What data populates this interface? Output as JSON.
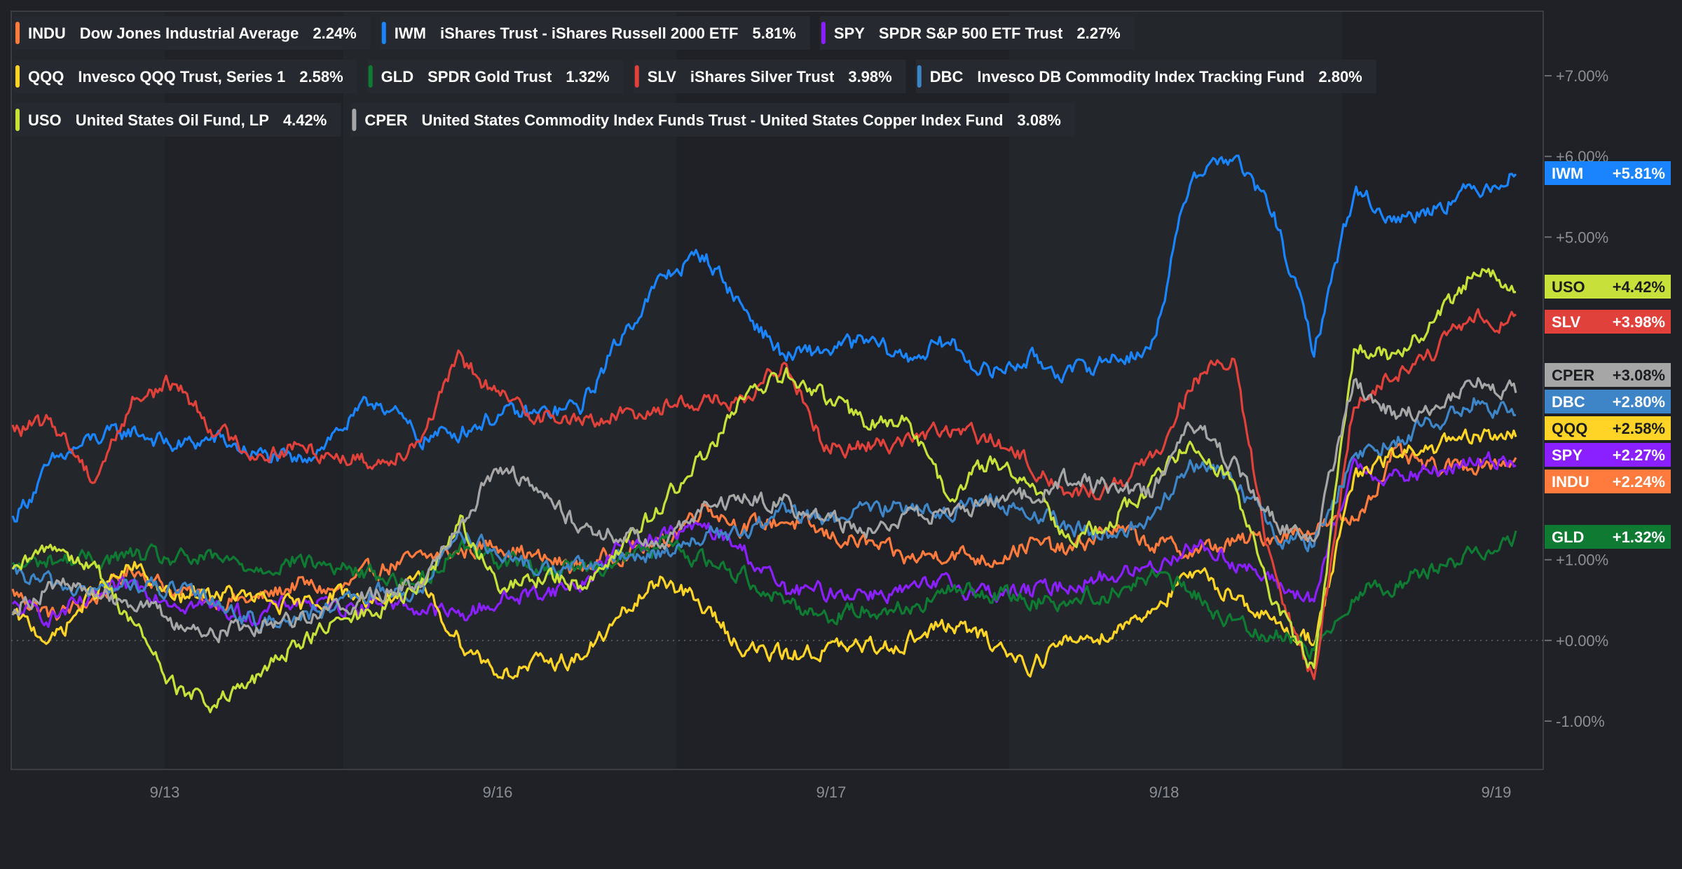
{
  "chart_data": {
    "type": "line",
    "title": "",
    "xlabel": "",
    "ylabel": "",
    "ylim": [
      -1.6,
      7.8
    ],
    "y_ticks": [
      "-1.00%",
      "+0.00%",
      "+1.00%",
      "+5.00%",
      "+6.00%",
      "+7.00%"
    ],
    "y_tick_values": [
      -1,
      0,
      1,
      5,
      6,
      7
    ],
    "x_ticks": [
      "9/13",
      "9/16",
      "9/17",
      "9/18",
      "9/19"
    ],
    "grid": false,
    "zero_line": true,
    "legend_placement": "top-left",
    "series": [
      {
        "symbol": "INDU",
        "name": "Dow Jones Industrial Average",
        "legend_value": "2.24%",
        "badge": "+2.24%",
        "color": "#ff7a3d",
        "values": [
          0.6,
          0.3,
          0.5,
          0.9,
          0.6,
          0.5,
          0.5,
          0.7,
          0.6,
          0.9,
          1.0,
          1.1,
          1.2,
          1.0,
          0.9,
          1.1,
          1.2,
          1.7,
          1.4,
          1.5,
          1.3,
          1.2,
          1.0,
          1.1,
          1.0,
          1.2,
          1.1,
          1.4,
          1.2,
          1.1,
          1.2,
          1.3,
          1.4,
          1.5,
          2.3,
          2.1,
          2.2,
          2.24
        ]
      },
      {
        "symbol": "IWM",
        "name": "iShares Trust - iShares Russell 2000 ETF",
        "legend_value": "5.81%",
        "badge": "+5.81%",
        "color": "#1a84ff",
        "values": [
          1.5,
          2.2,
          2.5,
          2.6,
          2.4,
          2.5,
          2.3,
          2.2,
          2.6,
          3.0,
          2.5,
          2.6,
          2.8,
          2.8,
          2.9,
          3.8,
          4.5,
          4.8,
          4.1,
          3.5,
          3.6,
          3.7,
          3.5,
          3.7,
          3.3,
          3.5,
          3.3,
          3.5,
          3.6,
          5.8,
          6.0,
          5.3,
          3.6,
          5.6,
          5.2,
          5.4,
          5.6,
          5.81
        ]
      },
      {
        "symbol": "SPY",
        "name": "SPDR S&P 500 ETF Trust",
        "legend_value": "2.27%",
        "badge": "+2.27%",
        "color": "#8a1fff",
        "values": [
          0.4,
          0.3,
          0.5,
          0.7,
          0.5,
          0.4,
          0.3,
          0.5,
          0.4,
          0.5,
          0.4,
          0.3,
          0.5,
          0.6,
          0.7,
          1.2,
          1.3,
          1.4,
          1.1,
          0.6,
          0.6,
          0.6,
          0.6,
          0.7,
          0.6,
          0.6,
          0.7,
          0.8,
          0.9,
          1.2,
          1.0,
          0.7,
          0.5,
          2.2,
          2.0,
          2.1,
          2.2,
          2.27
        ]
      },
      {
        "symbol": "QQQ",
        "name": "Invesco QQQ Trust, Series 1",
        "legend_value": "2.58%",
        "badge": "+2.58%",
        "color": "#ffd426",
        "values": [
          0.3,
          0.0,
          0.6,
          0.9,
          0.5,
          0.6,
          0.5,
          0.4,
          0.6,
          0.5,
          0.7,
          0.0,
          -0.4,
          -0.3,
          -0.2,
          0.3,
          0.8,
          0.4,
          -0.1,
          -0.2,
          -0.1,
          -0.1,
          0.0,
          0.2,
          0.0,
          -0.3,
          0.0,
          0.1,
          0.4,
          0.8,
          0.6,
          0.2,
          0.0,
          2.0,
          2.3,
          2.4,
          2.5,
          2.58
        ]
      },
      {
        "symbol": "GLD",
        "name": "SPDR Gold Trust",
        "legend_value": "1.32%",
        "badge": "+1.32%",
        "color": "#0e7a32",
        "values": [
          0.9,
          1.0,
          1.0,
          1.05,
          1.0,
          1.0,
          0.9,
          1.0,
          0.9,
          0.8,
          0.7,
          1.2,
          1.0,
          0.9,
          0.9,
          1.0,
          1.2,
          1.0,
          0.8,
          0.5,
          0.3,
          0.4,
          0.4,
          0.6,
          0.6,
          0.5,
          0.5,
          0.6,
          0.8,
          0.6,
          0.2,
          0.1,
          -0.1,
          0.6,
          0.7,
          0.9,
          1.1,
          1.32
        ]
      },
      {
        "symbol": "SLV",
        "name": "iShares Silver Trust",
        "legend_value": "3.98%",
        "badge": "+3.98%",
        "color": "#e0413a",
        "values": [
          2.6,
          2.7,
          2.0,
          3.0,
          3.2,
          2.6,
          2.3,
          2.4,
          2.3,
          2.2,
          2.5,
          3.5,
          3.0,
          2.8,
          2.7,
          2.8,
          2.9,
          3.0,
          2.9,
          3.5,
          2.4,
          2.4,
          2.5,
          2.6,
          2.5,
          2.2,
          1.8,
          1.9,
          2.2,
          3.2,
          3.5,
          0.8,
          -0.5,
          3.0,
          3.3,
          3.6,
          4.0,
          3.98
        ]
      },
      {
        "symbol": "DBC",
        "name": "Invesco DB Commodity Index Tracking Fund",
        "legend_value": "2.80%",
        "badge": "+2.80%",
        "color": "#3d85c6",
        "values": [
          0.8,
          0.7,
          0.6,
          0.7,
          0.6,
          0.5,
          0.2,
          0.3,
          0.4,
          0.6,
          0.6,
          1.4,
          1.0,
          0.9,
          0.9,
          1.0,
          1.1,
          1.3,
          1.3,
          1.6,
          1.5,
          1.6,
          1.7,
          1.6,
          1.7,
          1.6,
          1.4,
          1.3,
          1.5,
          2.2,
          2.0,
          1.3,
          1.2,
          2.3,
          2.5,
          2.7,
          3.0,
          2.8
        ]
      },
      {
        "symbol": "USO",
        "name": "United States Oil Fund, LP",
        "legend_value": "4.42%",
        "badge": "+4.42%",
        "color": "#c7e03a",
        "values": [
          0.8,
          1.2,
          0.9,
          0.2,
          -0.6,
          -0.8,
          -0.5,
          0.0,
          0.2,
          0.4,
          0.6,
          1.5,
          0.6,
          0.8,
          0.7,
          1.2,
          1.7,
          2.3,
          3.0,
          3.3,
          3.0,
          2.7,
          2.7,
          1.8,
          2.2,
          2.0,
          1.2,
          1.5,
          1.9,
          2.5,
          2.0,
          0.5,
          -0.4,
          3.7,
          3.5,
          4.0,
          4.6,
          4.42
        ]
      },
      {
        "symbol": "CPER",
        "name": "United States Commodity Index Funds Trust - United States Copper Index Fund",
        "legend_value": "3.08%",
        "badge": "+3.08%",
        "color": "#a6a6a6",
        "values": [
          0.4,
          0.7,
          0.6,
          0.5,
          0.2,
          0.1,
          0.2,
          0.3,
          0.4,
          0.6,
          0.7,
          1.5,
          2.2,
          1.8,
          1.4,
          1.3,
          1.2,
          1.6,
          1.8,
          1.7,
          1.5,
          1.4,
          1.5,
          1.6,
          1.7,
          1.8,
          2.0,
          1.9,
          1.8,
          2.7,
          2.2,
          1.5,
          1.2,
          3.2,
          2.8,
          2.9,
          3.2,
          3.08
        ]
      }
    ]
  }
}
